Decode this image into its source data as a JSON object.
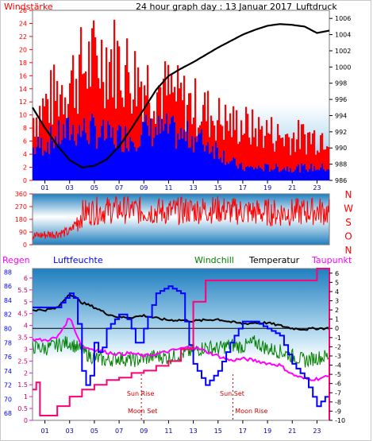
{
  "chart_data": [
    {
      "type": "bar",
      "title": "24 hour graph day : 13 Januar 2017",
      "left_label": "Windstärke",
      "right_label": "Luftdruck",
      "x_ticks": [
        "01",
        "03",
        "05",
        "07",
        "09",
        "11",
        "13",
        "15",
        "17",
        "19",
        "21",
        "23"
      ],
      "y_left_ticks": [
        "0",
        "2",
        "4",
        "6",
        "8",
        "10",
        "12",
        "14",
        "16",
        "18",
        "20",
        "22",
        "24",
        "26"
      ],
      "y_right_ticks": [
        "986",
        "988",
        "990",
        "992",
        "994",
        "996",
        "998",
        "1000",
        "1002",
        "1004",
        "1006"
      ],
      "ylim_left": [
        0,
        26
      ],
      "ylim_right": [
        986,
        1007
      ],
      "series": [
        {
          "name": "gust",
          "color": "#ff0000",
          "kind": "bar",
          "x": [
            0,
            1,
            2,
            3,
            4,
            5,
            6,
            7,
            8,
            9,
            10,
            11,
            12,
            13,
            14,
            15,
            16,
            17,
            18,
            19,
            20,
            21,
            22,
            23,
            24
          ],
          "values": [
            10,
            12,
            14,
            16,
            18,
            19,
            20,
            19,
            17,
            16,
            15,
            14,
            13,
            12,
            11,
            10,
            9,
            9,
            8,
            8,
            7,
            7,
            7,
            7,
            8
          ]
        },
        {
          "name": "average",
          "color": "#0000ff",
          "kind": "bar",
          "x": [
            0,
            1,
            2,
            3,
            4,
            5,
            6,
            7,
            8,
            9,
            10,
            11,
            12,
            13,
            14,
            15,
            16,
            17,
            18,
            19,
            20,
            21,
            22,
            23,
            24
          ],
          "values": [
            5,
            6,
            7,
            8,
            8,
            8,
            7,
            7,
            7,
            8,
            8,
            8,
            7,
            7,
            6,
            5,
            3,
            2,
            2,
            2,
            2,
            2,
            2,
            2,
            2
          ]
        },
        {
          "name": "pressure",
          "color": "#000000",
          "kind": "line",
          "x": [
            0,
            1,
            2,
            3,
            4,
            5,
            6,
            7,
            8,
            9,
            10,
            11,
            12,
            13,
            14,
            15,
            16,
            17,
            18,
            19,
            20,
            21,
            22,
            23,
            24
          ],
          "values": [
            995.0,
            992.5,
            990.3,
            988.5,
            987.6,
            987.8,
            988.6,
            990.2,
            992.4,
            994.8,
            997.2,
            998.9,
            999.8,
            1000.6,
            1001.5,
            1002.4,
            1003.2,
            1004.0,
            1004.6,
            1005.1,
            1005.3,
            1005.2,
            1005.0,
            1004.2,
            1004.5
          ]
        }
      ]
    },
    {
      "type": "line",
      "y_ticks": [
        "360",
        "270",
        "180",
        "90",
        "0"
      ],
      "ylim": [
        0,
        360
      ],
      "compass_labels": [
        "N",
        "W",
        "S",
        "O",
        "N"
      ],
      "series": [
        {
          "name": "direction",
          "color": "#ff0000",
          "x": [
            0,
            1,
            2,
            3,
            4,
            5,
            6,
            7,
            8,
            9,
            10,
            11,
            12,
            13,
            14,
            15,
            16,
            17,
            18,
            19,
            20,
            21,
            22,
            23,
            24
          ],
          "values": [
            60,
            70,
            80,
            90,
            220,
            240,
            245,
            250,
            245,
            240,
            238,
            235,
            240,
            245,
            248,
            250,
            240,
            235,
            230,
            230,
            225,
            230,
            235,
            240,
            230
          ]
        }
      ]
    },
    {
      "type": "line",
      "x_ticks": [
        "01",
        "03",
        "05",
        "07",
        "09",
        "11",
        "13",
        "15",
        "17",
        "19",
        "21",
        "23"
      ],
      "labels": {
        "regen": "Regen",
        "luftfeuchte": "Luftfeuchte",
        "windchill": "Windchill",
        "temperatur": "Temperatur",
        "taupunkt": "Taupunkt"
      },
      "y_rain_ticks": [
        "0",
        "0.5",
        "1",
        "1.5",
        "2",
        "2.5",
        "3",
        "3.5",
        "4",
        "4.5",
        "5",
        "5.5",
        "6"
      ],
      "y_humidity_ticks": [
        "68",
        "70",
        "72",
        "74",
        "76",
        "78",
        "80",
        "82",
        "84",
        "86",
        "88"
      ],
      "y_temp_ticks": [
        "-10",
        "-9",
        "-8",
        "-7",
        "-6",
        "-5",
        "-4",
        "-3",
        "-2",
        "-1",
        "0",
        "1",
        "2",
        "3",
        "4",
        "5",
        "6"
      ],
      "ylim_rain": [
        0,
        6.4
      ],
      "ylim_humidity": [
        67,
        88.5
      ],
      "ylim_temp": [
        -10,
        6.5
      ],
      "events": {
        "sun_rise": "Sun Rise",
        "sun_set": "Sun Set",
        "moon_set": "Moon Set",
        "moon_rise": "Moon Rise",
        "sun_rise_x": 8.8,
        "sun_set_x": 16.2,
        "moon_set_x": 8.9,
        "moon_rise_x": 16.1
      },
      "series": [
        {
          "name": "Regen",
          "color": "#ff00a0",
          "x": [
            0,
            0.3,
            0.6,
            1,
            2,
            3,
            4,
            5,
            6,
            7,
            8,
            9,
            10,
            11,
            12,
            13,
            14,
            15,
            16,
            17,
            18,
            19,
            20,
            21,
            22,
            23,
            23.8,
            24
          ],
          "values": [
            1.3,
            1.6,
            0.2,
            0.2,
            0.6,
            1.0,
            1.3,
            1.5,
            1.7,
            1.8,
            2.0,
            2.1,
            2.3,
            2.5,
            3.0,
            5.0,
            5.9,
            5.9,
            5.9,
            5.9,
            5.9,
            5.9,
            5.9,
            5.9,
            5.9,
            6.4,
            6.4,
            0
          ]
        },
        {
          "name": "Luftfeuchte",
          "color": "#0000ff",
          "x": [
            0,
            1,
            2,
            3,
            3.5,
            4,
            4.5,
            5,
            5.5,
            6,
            6.5,
            7,
            7.5,
            8,
            8.5,
            9,
            10,
            11,
            12,
            12.5,
            13,
            14,
            15,
            16,
            17,
            18,
            19,
            20,
            21,
            22,
            22.5,
            23,
            23.5,
            24
          ],
          "values": [
            83,
            83,
            83,
            85,
            84,
            74,
            71,
            78,
            76,
            80,
            81,
            82,
            82,
            80,
            77,
            80,
            85,
            86,
            85,
            79,
            75,
            72,
            74,
            78,
            81,
            81,
            80,
            79,
            75,
            73,
            71,
            69,
            70,
            71
          ]
        },
        {
          "name": "Windchill",
          "color": "#008000",
          "x": [
            0,
            1,
            2,
            3,
            4,
            5,
            6,
            7,
            8,
            9,
            10,
            11,
            12,
            13,
            14,
            15,
            16,
            17,
            18,
            19,
            20,
            21,
            22,
            23,
            24
          ],
          "values": [
            -2,
            -2.2,
            -1.8,
            -1.5,
            -2.5,
            -3.2,
            -3.5,
            -3.2,
            -3.5,
            -3.3,
            -3.0,
            -3.2,
            -2.8,
            -2.5,
            -2.0,
            -2.2,
            -1.8,
            -2.0,
            -1.5,
            -2.2,
            -2.5,
            -3.0,
            -3.5,
            -3.2,
            -3.0
          ]
        },
        {
          "name": "Temperatur",
          "color": "#000000",
          "x": [
            0,
            1,
            2,
            3,
            4,
            5,
            6,
            7,
            8,
            9,
            10,
            11,
            12,
            13,
            14,
            15,
            16,
            17,
            18,
            19,
            20,
            21,
            22,
            23,
            24
          ],
          "values": [
            2.0,
            2.0,
            2.2,
            3.8,
            2.8,
            2.3,
            1.6,
            1.2,
            1.2,
            1.4,
            1.1,
            0.9,
            0.9,
            0.8,
            0.9,
            1.0,
            0.7,
            0.5,
            0.6,
            0.6,
            0.3,
            0.0,
            -0.1,
            0.0,
            0.0
          ]
        },
        {
          "name": "Taupunkt",
          "color": "#ff00ff",
          "x": [
            0,
            1,
            2,
            3,
            4,
            5,
            6,
            7,
            8,
            9,
            10,
            11,
            12,
            13,
            14,
            15,
            16,
            17,
            18,
            19,
            20,
            21,
            22,
            23,
            24
          ],
          "values": [
            -1.2,
            -1.3,
            -1.0,
            1.2,
            -2.0,
            -2.3,
            -2.6,
            -2.8,
            -2.7,
            -3.0,
            -2.8,
            -2.5,
            -2.2,
            -2.0,
            -2.5,
            -3.0,
            -3.5,
            -3.3,
            -3.5,
            -3.8,
            -4.0,
            -5.0,
            -5.5,
            -5.5,
            -5.2
          ]
        }
      ]
    }
  ],
  "colors": {
    "red_axis": "#ff0000",
    "blue_axis": "#0000ff",
    "pink_axis": "#ff00ff",
    "green_label": "#008000",
    "dark_label": "#000000",
    "sky_top": "#1f7fbf",
    "sky_bottom": "#ffffff"
  }
}
